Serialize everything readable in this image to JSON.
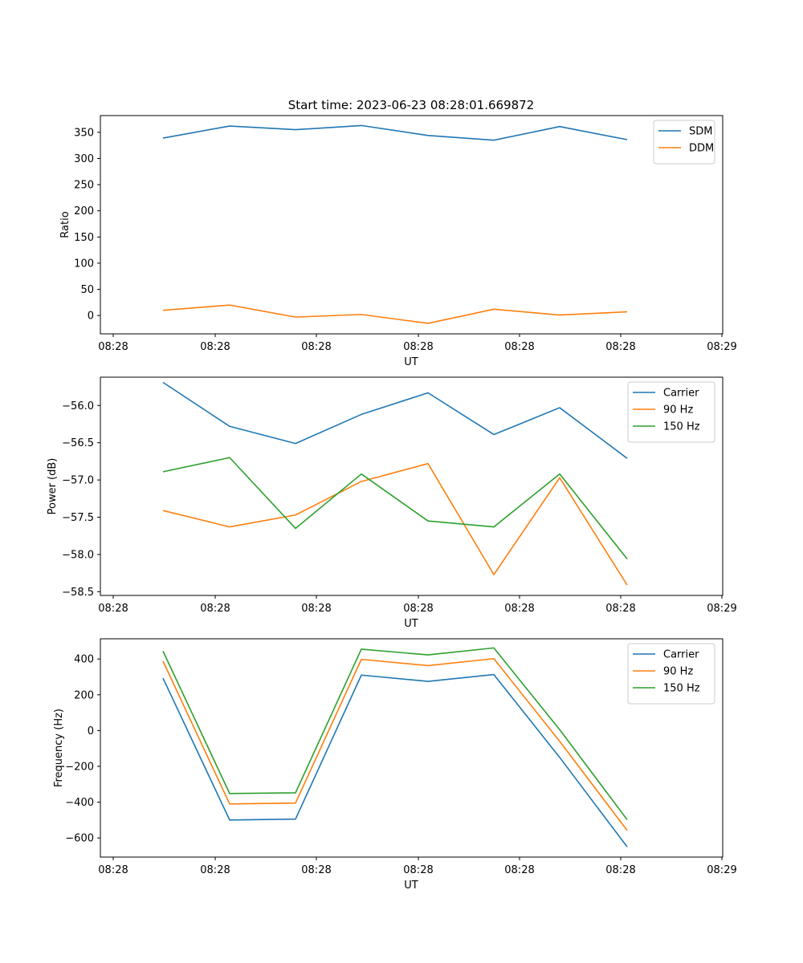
{
  "figure_title": "Start time: 2023-06-23 08:28:01.669872",
  "colors": {
    "blue": "#1f77b4",
    "orange": "#ff7f0e",
    "green": "#2ca02c"
  },
  "chart_data": [
    {
      "type": "line",
      "title": "Start time: 2023-06-23 08:28:01.669872",
      "xlabel": "UT",
      "ylabel": "Ratio",
      "x_ticks": [
        "08:28",
        "08:28",
        "08:28",
        "08:28",
        "08:28",
        "08:28",
        "08:29"
      ],
      "y_ticks": [
        0,
        50,
        100,
        150,
        200,
        250,
        300,
        350
      ],
      "ylim": [
        -35,
        382
      ],
      "grid": false,
      "legend_position": "top-right",
      "series": [
        {
          "name": "SDM",
          "color": "#1f77b4",
          "values": [
            339,
            362,
            355,
            363,
            344,
            335,
            361,
            336
          ]
        },
        {
          "name": "DDM",
          "color": "#ff7f0e",
          "values": [
            10,
            20,
            -3,
            2,
            -15,
            12,
            1,
            7
          ]
        }
      ]
    },
    {
      "type": "line",
      "xlabel": "UT",
      "ylabel": "Power (dB)",
      "x_ticks": [
        "08:28",
        "08:28",
        "08:28",
        "08:28",
        "08:28",
        "08:28",
        "08:29"
      ],
      "y_ticks": [
        -56.0,
        -56.5,
        -57.0,
        -57.5,
        -58.0,
        -58.5
      ],
      "ylim": [
        -58.55,
        -55.62
      ],
      "grid": false,
      "legend_position": "top-right",
      "series": [
        {
          "name": "Carrier",
          "color": "#1f77b4",
          "values": [
            -55.69,
            -56.28,
            -56.51,
            -56.12,
            -55.83,
            -56.39,
            -56.03,
            -56.71
          ]
        },
        {
          "name": "90 Hz",
          "color": "#ff7f0e",
          "values": [
            -57.41,
            -57.63,
            -57.47,
            -57.02,
            -56.78,
            -58.27,
            -56.97,
            -58.41
          ]
        },
        {
          "name": "150 Hz",
          "color": "#2ca02c",
          "values": [
            -56.89,
            -56.7,
            -57.65,
            -56.92,
            -57.55,
            -57.63,
            -56.92,
            -58.06
          ]
        }
      ]
    },
    {
      "type": "line",
      "xlabel": "UT",
      "ylabel": "Frequency (Hz)",
      "x_ticks": [
        "08:28",
        "08:28",
        "08:28",
        "08:28",
        "08:28",
        "08:28",
        "08:29"
      ],
      "y_ticks": [
        400,
        200,
        0,
        -200,
        -400,
        -600
      ],
      "ylim": [
        -707,
        513
      ],
      "grid": false,
      "legend_position": "top-right",
      "series": [
        {
          "name": "Carrier",
          "color": "#1f77b4",
          "values": [
            293,
            -500,
            -495,
            310,
            275,
            313,
            -150,
            -650
          ]
        },
        {
          "name": "90 Hz",
          "color": "#ff7f0e",
          "values": [
            388,
            -410,
            -405,
            398,
            363,
            402,
            -60,
            -558
          ]
        },
        {
          "name": "150 Hz",
          "color": "#2ca02c",
          "values": [
            444,
            -352,
            -348,
            455,
            423,
            462,
            5,
            -498
          ]
        }
      ]
    }
  ]
}
